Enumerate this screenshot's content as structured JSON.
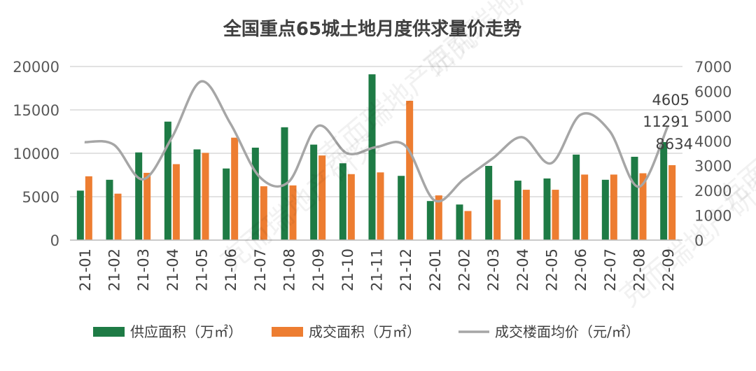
{
  "chart_data": {
    "type": "bar+line",
    "title": "全国重点65城土地月度供求量价走势",
    "categories": [
      "21-01",
      "21-02",
      "21-03",
      "21-04",
      "21-05",
      "21-06",
      "21-07",
      "21-08",
      "21-09",
      "21-10",
      "21-11",
      "21-12",
      "22-01",
      "22-02",
      "22-03",
      "22-04",
      "22-05",
      "22-06",
      "22-07",
      "22-08",
      "22-09"
    ],
    "series": [
      {
        "name": "供应面积（万㎡）",
        "type": "bar",
        "axis": "left",
        "color": "#1E7B45",
        "values": [
          5700,
          6950,
          10100,
          13650,
          10450,
          8250,
          10650,
          13000,
          11000,
          8850,
          19100,
          7400,
          4500,
          4100,
          8550,
          6850,
          7100,
          9850,
          6950,
          9600,
          11291
        ]
      },
      {
        "name": "成交面积（万㎡）",
        "type": "bar",
        "axis": "left",
        "color": "#ED7D31",
        "values": [
          7350,
          5350,
          7750,
          8750,
          10050,
          11800,
          6200,
          6300,
          9750,
          7600,
          7800,
          16050,
          5150,
          3350,
          4650,
          5800,
          5800,
          7550,
          7550,
          7700,
          8634
        ]
      },
      {
        "name": "成交楼面均价（元/㎡）",
        "type": "line",
        "axis": "right",
        "color": "#A6A6A6",
        "values": [
          3950,
          3850,
          2450,
          4150,
          6400,
          4700,
          2550,
          2350,
          4600,
          3500,
          3750,
          3800,
          1600,
          2450,
          3300,
          4150,
          3100,
          5050,
          4400,
          2150,
          4605
        ]
      }
    ],
    "y_left": {
      "min": 0,
      "max": 20000,
      "ticks": [
        "0",
        "5000",
        "10000",
        "15000",
        "20000"
      ]
    },
    "y_right": {
      "min": 0,
      "max": 7000,
      "ticks": [
        "0",
        "1000",
        "2000",
        "3000",
        "4000",
        "5000",
        "6000",
        "7000"
      ]
    },
    "data_labels": [
      {
        "series": "成交楼面均价（元/㎡）",
        "category": "22-09",
        "text": "4605"
      },
      {
        "series": "供应面积（万㎡）",
        "category": "22-09",
        "text": "11291"
      },
      {
        "series": "成交面积（万㎡）",
        "category": "22-09",
        "text": "8634"
      }
    ],
    "legend": {
      "position": "bottom",
      "items": [
        {
          "label": "供应面积（万㎡）",
          "color": "#1E7B45",
          "kind": "bar"
        },
        {
          "label": "成交面积（万㎡）",
          "color": "#ED7D31",
          "kind": "bar"
        },
        {
          "label": "成交楼面均价（元/㎡）",
          "color": "#A6A6A6",
          "kind": "line"
        }
      ]
    },
    "grid": true,
    "watermark_text": "克而瑞地产研究"
  }
}
